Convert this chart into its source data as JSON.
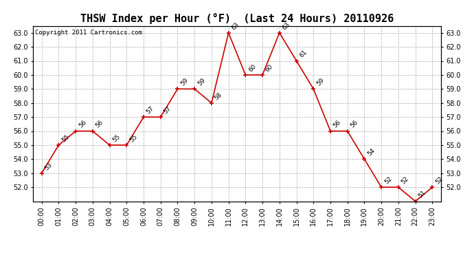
{
  "title": "THSW Index per Hour (°F)  (Last 24 Hours) 20110926",
  "copyright": "Copyright 2011 Cartronics.com",
  "hours": [
    "00:00",
    "01:00",
    "02:00",
    "03:00",
    "04:00",
    "05:00",
    "06:00",
    "07:00",
    "08:00",
    "09:00",
    "10:00",
    "11:00",
    "12:00",
    "13:00",
    "14:00",
    "15:00",
    "16:00",
    "17:00",
    "18:00",
    "19:00",
    "20:00",
    "21:00",
    "22:00",
    "23:00"
  ],
  "values": [
    53,
    55,
    56,
    56,
    55,
    55,
    57,
    57,
    59,
    59,
    58,
    63,
    60,
    60,
    63,
    61,
    59,
    56,
    56,
    54,
    52,
    52,
    51,
    52
  ],
  "line_color": "#cc0000",
  "marker_color": "#cc0000",
  "bg_color": "#ffffff",
  "grid_color": "#aaaaaa",
  "ylim_min": 51.0,
  "ylim_max": 63.5,
  "title_fontsize": 11,
  "label_fontsize": 7,
  "copyright_fontsize": 6.5,
  "annotation_fontsize": 6.5
}
